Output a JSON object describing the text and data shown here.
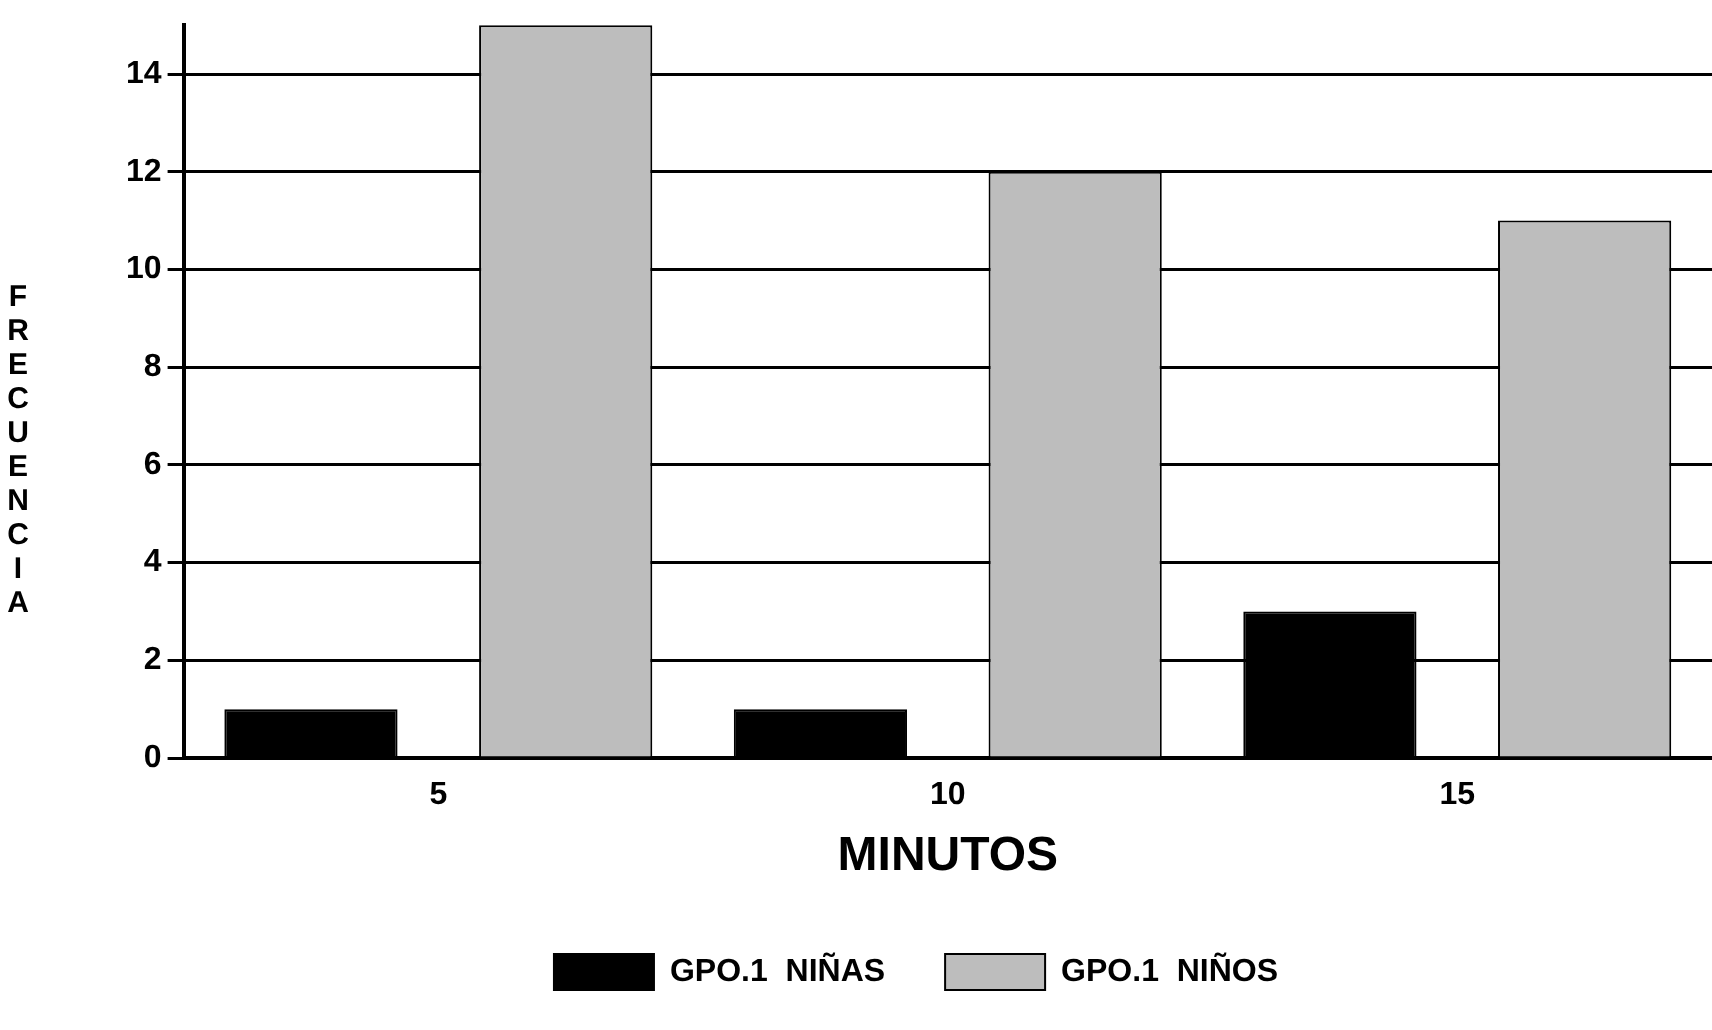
{
  "chart_data": {
    "type": "bar",
    "xlabel": "MINUTOS",
    "ylabel": "FRECUENCIA",
    "categories": [
      "5",
      "10",
      "15"
    ],
    "series": [
      {
        "name": "GPO.1  NIÑAS",
        "color": "#000000",
        "values": [
          1,
          1,
          3
        ]
      },
      {
        "name": "GPO.1  NIÑOS",
        "color": "#bdbdbd",
        "values": [
          15,
          12,
          11
        ]
      }
    ],
    "ylim": [
      0,
      15
    ],
    "yticks": [
      0,
      2,
      4,
      6,
      8,
      10,
      12,
      14
    ],
    "grid": "y",
    "legend": "bottom"
  }
}
